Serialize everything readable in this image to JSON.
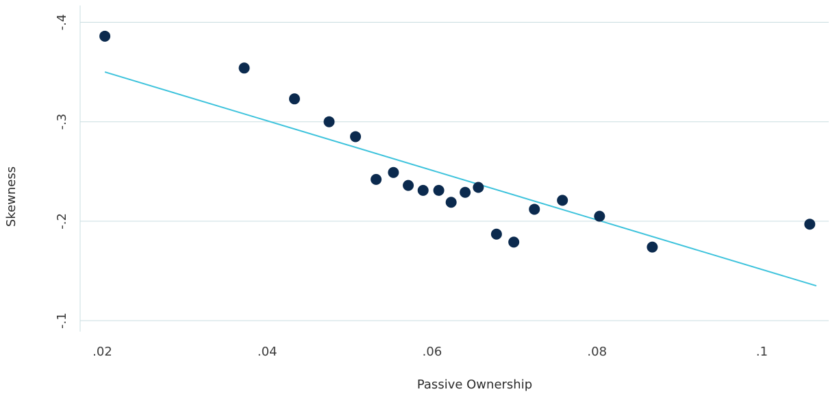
{
  "chart_data": {
    "type": "scatter",
    "title": "",
    "xlabel": "Passive Ownership",
    "ylabel": "Skewness",
    "xlim": [
      0.0173,
      0.1081
    ],
    "ylim": [
      -0.41,
      -0.089
    ],
    "x_ticks": [
      {
        "value": 0.02,
        "label": ".02"
      },
      {
        "value": 0.04,
        "label": ".04"
      },
      {
        "value": 0.06,
        "label": ".06"
      },
      {
        "value": 0.08,
        "label": ".08"
      },
      {
        "value": 0.1,
        "label": ".1"
      }
    ],
    "y_ticks": [
      {
        "value": -0.4,
        "label": "-.4"
      },
      {
        "value": -0.3,
        "label": "-.3"
      },
      {
        "value": -0.2,
        "label": "-.2"
      },
      {
        "value": -0.1,
        "label": "-.1"
      }
    ],
    "grid": "horizontal",
    "legend": "none",
    "colors": {
      "points": "#0b2a4e",
      "fit_line": "#3ec3dc",
      "grid": "#c9dde0"
    },
    "series": [
      {
        "type": "scatter",
        "points": [
          {
            "x": 0.0203,
            "y": -0.386
          },
          {
            "x": 0.0372,
            "y": -0.354
          },
          {
            "x": 0.0433,
            "y": -0.323
          },
          {
            "x": 0.0475,
            "y": -0.3
          },
          {
            "x": 0.0507,
            "y": -0.285
          },
          {
            "x": 0.0532,
            "y": -0.242
          },
          {
            "x": 0.0553,
            "y": -0.249
          },
          {
            "x": 0.0571,
            "y": -0.236
          },
          {
            "x": 0.0589,
            "y": -0.231
          },
          {
            "x": 0.0608,
            "y": -0.231
          },
          {
            "x": 0.0623,
            "y": -0.219
          },
          {
            "x": 0.064,
            "y": -0.229
          },
          {
            "x": 0.0656,
            "y": -0.234
          },
          {
            "x": 0.0678,
            "y": -0.187
          },
          {
            "x": 0.0699,
            "y": -0.179
          },
          {
            "x": 0.0724,
            "y": -0.212
          },
          {
            "x": 0.0758,
            "y": -0.221
          },
          {
            "x": 0.0803,
            "y": -0.205
          },
          {
            "x": 0.0867,
            "y": -0.174
          },
          {
            "x": 0.1058,
            "y": -0.197
          }
        ]
      },
      {
        "type": "line",
        "points": [
          {
            "x": 0.0203,
            "y": -0.35
          },
          {
            "x": 0.1066,
            "y": -0.135
          }
        ]
      }
    ]
  }
}
